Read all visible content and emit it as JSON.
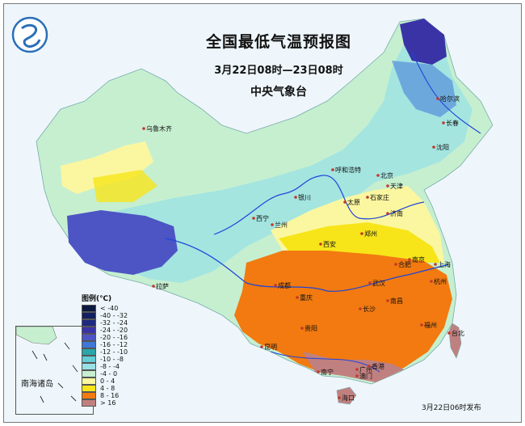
{
  "header": {
    "title": "全国最低气温预报图",
    "time_range": "3月22日08时—23日08时",
    "agency": "中央气象台"
  },
  "legend": {
    "title": "图例(℃)",
    "items": [
      {
        "label": "< -40",
        "color": "#0b1a3e"
      },
      {
        "label": "-40 - -32",
        "color": "#13205f"
      },
      {
        "label": "-32 - -24",
        "color": "#1e2a80"
      },
      {
        "label": "-24 - -20",
        "color": "#3a33a6"
      },
      {
        "label": "-20 - -16",
        "color": "#4d55c4"
      },
      {
        "label": "-16 - -12",
        "color": "#3f77d8"
      },
      {
        "label": "-12 - -10",
        "color": "#2aa6a8"
      },
      {
        "label": "-10 - -8",
        "color": "#63cdd6"
      },
      {
        "label": "-8 - -4",
        "color": "#98e2e6"
      },
      {
        "label": "-4 - 0",
        "color": "#c6efd0"
      },
      {
        "label": "0 - 4",
        "color": "#fbf7a0"
      },
      {
        "label": "4 - 8",
        "color": "#f7e51a"
      },
      {
        "label": "8 - 16",
        "color": "#f27a10"
      },
      {
        "label": "> 16",
        "color": "#c0807f"
      }
    ]
  },
  "cities": [
    {
      "name": "乌鲁木齐"
    },
    {
      "name": "哈尔滨"
    },
    {
      "name": "长春"
    },
    {
      "name": "沈阳"
    },
    {
      "name": "北京"
    },
    {
      "name": "天津"
    },
    {
      "name": "呼和浩特"
    },
    {
      "name": "石家庄"
    },
    {
      "name": "太原"
    },
    {
      "name": "银川"
    },
    {
      "name": "济南"
    },
    {
      "name": "西宁"
    },
    {
      "name": "兰州"
    },
    {
      "name": "郑州"
    },
    {
      "name": "西安"
    },
    {
      "name": "南京"
    },
    {
      "name": "合肥"
    },
    {
      "name": "上海"
    },
    {
      "name": "拉萨"
    },
    {
      "name": "成都"
    },
    {
      "name": "武汉"
    },
    {
      "name": "杭州"
    },
    {
      "name": "重庆"
    },
    {
      "name": "长沙"
    },
    {
      "name": "南昌"
    },
    {
      "name": "贵阳"
    },
    {
      "name": "福州"
    },
    {
      "name": "台北"
    },
    {
      "name": "昆明"
    },
    {
      "name": "南宁"
    },
    {
      "name": "广州"
    },
    {
      "name": "香港"
    },
    {
      "name": "澳门"
    },
    {
      "name": "海口"
    }
  ],
  "inset": {
    "label": "南海诸岛"
  },
  "issue": {
    "text": "3月22日06时发布"
  }
}
